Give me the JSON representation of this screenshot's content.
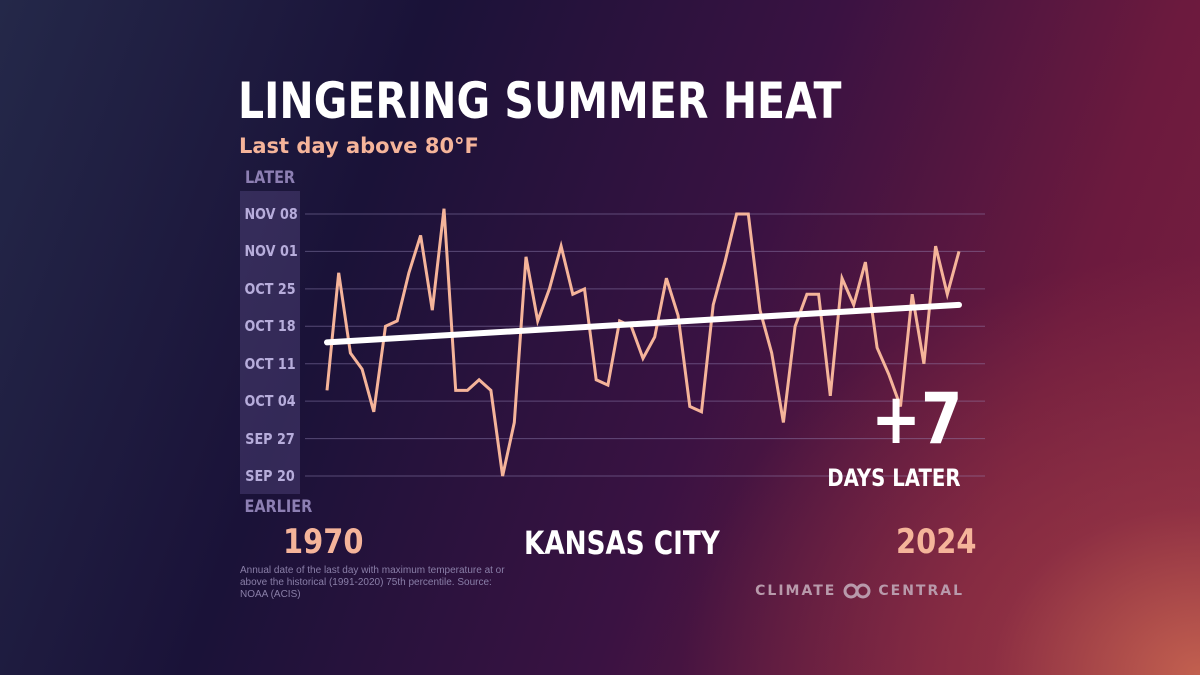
{
  "header": {
    "title": "LINGERING SUMMER HEAT",
    "subtitle": "Last day above 80°F"
  },
  "axis": {
    "later_label": "LATER",
    "earlier_label": "EARLIER"
  },
  "location": "KANSAS CITY",
  "delta": {
    "value": "+7",
    "label": "DAYS LATER"
  },
  "footnote": "Annual date of the last day with maximum temperature at or above the historical (1991-2020) 75th percentile. Source: NOAA (ACIS)",
  "brand": {
    "name": "CLIMATE CENTRAL",
    "icon": "climate-central-logo-icon"
  },
  "colors": {
    "series": "#f5b49a",
    "trend": "#ffffff",
    "gridline": "#9c8fbf",
    "axis_band": "#6a5a9a"
  },
  "chart_data": {
    "type": "line",
    "title": "LINGERING SUMMER HEAT",
    "subtitle": "Last day above 80°F",
    "xlabel": "",
    "ylabel": "",
    "xlim": [
      1970,
      2024
    ],
    "x_tick_labels": [
      "1970",
      "2024"
    ],
    "y_tick_labels": [
      "NOV 08",
      "NOV 01",
      "OCT 25",
      "OCT 18",
      "OCT 11",
      "OCT 04",
      "SEP 27",
      "SEP 20"
    ],
    "y_tick_values": [
      "Nov 08",
      "Nov 01",
      "Oct 25",
      "Oct 18",
      "Oct 11",
      "Oct 04",
      "Sep 27",
      "Sep 20"
    ],
    "ylim": [
      "Sep 20",
      "Nov 08"
    ],
    "grid": true,
    "series": [
      {
        "x": [
          1970,
          1971,
          1972,
          1973,
          1974,
          1975,
          1976,
          1977,
          1978,
          1979,
          1980,
          1981,
          1982,
          1983,
          1984,
          1985,
          1986,
          1987,
          1988,
          1989,
          1990,
          1991,
          1992,
          1993,
          1994,
          1995,
          1996,
          1997,
          1998,
          1999,
          2000,
          2001,
          2002,
          2003,
          2004,
          2005,
          2006,
          2007,
          2008,
          2009,
          2010,
          2011,
          2012,
          2013,
          2014,
          2015,
          2016,
          2017,
          2018,
          2019,
          2020,
          2021,
          2022,
          2023,
          2024
        ],
        "y": [
          "Oct 06",
          "Oct 28",
          "Oct 13",
          "Oct 10",
          "Oct 02",
          "Oct 18",
          "Oct 19",
          "Oct 28",
          "Nov 04",
          "Oct 21",
          "Nov 09",
          "Oct 06",
          "Oct 06",
          "Oct 08",
          "Oct 06",
          "Sep 20",
          "Sep 30",
          "Oct 31",
          "Oct 19",
          "Oct 25",
          "Nov 02",
          "Oct 24",
          "Oct 25",
          "Oct 08",
          "Oct 07",
          "Oct 19",
          "Oct 18",
          "Oct 12",
          "Oct 16",
          "Oct 27",
          "Oct 20",
          "Oct 03",
          "Oct 02",
          "Oct 22",
          "Oct 30",
          "Nov 08",
          "Nov 08",
          "Oct 21",
          "Oct 13",
          "Sep 30",
          "Oct 18",
          "Oct 24",
          "Oct 24",
          "Oct 05",
          "Oct 27",
          "Oct 22",
          "Oct 30",
          "Oct 14",
          "Oct 09",
          "Oct 03",
          "Oct 24",
          "Oct 11",
          "Nov 02",
          "Oct 24",
          "Nov 01"
        ]
      },
      {
        "x": [
          1970,
          2024
        ],
        "y": [
          "Oct 15",
          "Oct 22"
        ]
      }
    ],
    "annotations": [
      "+7",
      "DAYS LATER",
      "KANSAS CITY"
    ]
  }
}
